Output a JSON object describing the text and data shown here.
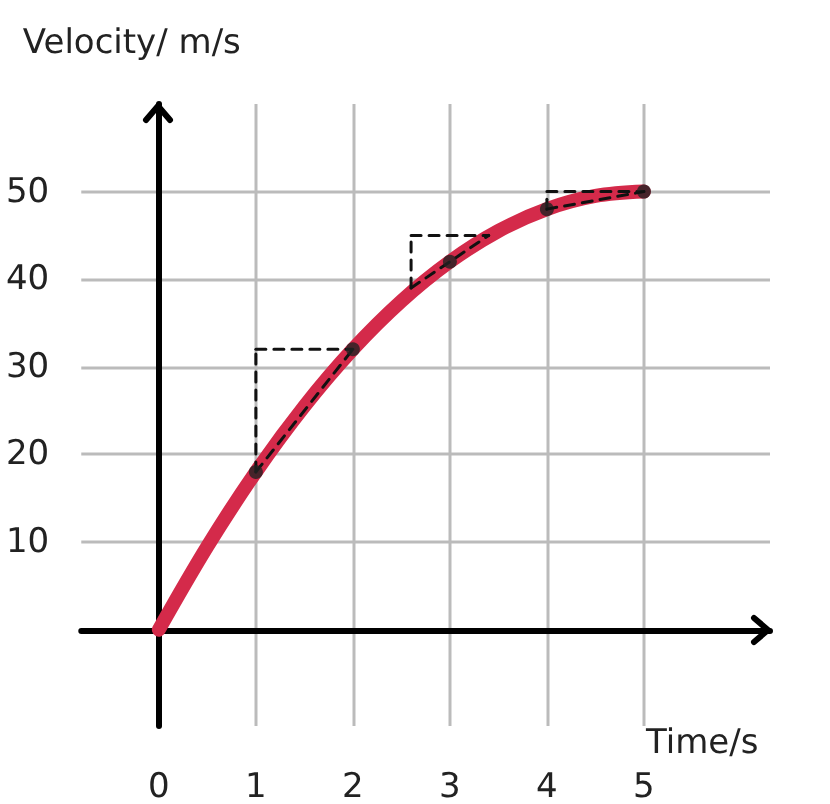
{
  "chart_data": {
    "type": "line",
    "xlabel": "Time/s",
    "ylabel": "Velocity/ m/s",
    "xlim": [
      -0.8,
      6.3
    ],
    "ylim": [
      -11,
      60
    ],
    "xticks": [
      0,
      1,
      2,
      3,
      4,
      5
    ],
    "yticks": [
      10,
      20,
      30,
      40,
      50
    ],
    "grid": true,
    "marker": "none",
    "series": [
      {
        "color": "#d42a4a",
        "x": [
          0,
          0.5,
          1,
          1.5,
          2,
          2.5,
          3,
          3.5,
          4,
          4.5,
          5
        ],
        "values": [
          0,
          9.5,
          18,
          25.5,
          32,
          37.5,
          42,
          45.5,
          48,
          49.5,
          50
        ]
      },
      {
        "type": "line",
        "color": "#111111",
        "line_style": "dashed",
        "x": [
          1,
          1
        ],
        "values": [
          18,
          32
        ]
      },
      {
        "type": "line",
        "color": "#111111",
        "line_style": "dashed",
        "x": [
          1,
          2
        ],
        "values": [
          32,
          32
        ]
      },
      {
        "type": "line",
        "color": "#111111",
        "line_style": "dashed",
        "x": [
          1,
          2
        ],
        "values": [
          18,
          32
        ]
      },
      {
        "type": "line",
        "color": "#111111",
        "line_style": "dashed",
        "x": [
          2.6,
          2.6
        ],
        "values": [
          39,
          45
        ]
      },
      {
        "type": "line",
        "color": "#111111",
        "line_style": "dashed",
        "x": [
          2.6,
          3.4
        ],
        "values": [
          45,
          45
        ]
      },
      {
        "type": "line",
        "color": "#111111",
        "line_style": "dashed",
        "x": [
          2.6,
          3.4
        ],
        "values": [
          39,
          45
        ]
      },
      {
        "type": "line",
        "color": "#111111",
        "line_style": "dashed",
        "x": [
          4,
          4
        ],
        "values": [
          48,
          50
        ]
      },
      {
        "type": "line",
        "color": "#111111",
        "line_style": "dashed",
        "x": [
          4,
          5
        ],
        "values": [
          50,
          50
        ]
      },
      {
        "type": "line",
        "color": "#111111",
        "line_style": "dashed",
        "x": [
          4,
          5
        ],
        "values": [
          48,
          50
        ]
      },
      {
        "type": "scatter",
        "color": "#222222",
        "marker": "circle",
        "x": [
          1,
          2,
          3,
          4,
          5
        ],
        "values": [
          18,
          32,
          42,
          48,
          50
        ]
      }
    ]
  }
}
